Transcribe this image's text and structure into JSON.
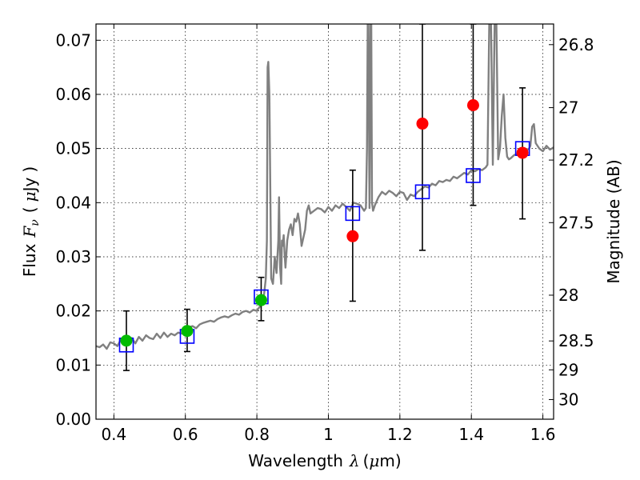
{
  "chart_data": {
    "type": "scatter",
    "xlabel": {
      "prefix": "Wavelength",
      "symbol": "λ",
      "unit_open": "(",
      "unit_mu": "μ",
      "unit_rest": "m)"
    },
    "ylabel": {
      "prefix": "Flux",
      "symbol": "F",
      "subscript": "ν",
      "unit_open": "(",
      "unit_mu": "μ",
      "unit_rest": "Jy",
      "unit_close": ")"
    },
    "y2label": "Magnitude (AB)",
    "xlim": [
      0.35,
      1.63
    ],
    "ylim": [
      0.0,
      0.073
    ],
    "grid": true,
    "x_ticks": [
      {
        "value": 0.4,
        "label": "0.4"
      },
      {
        "value": 0.6,
        "label": "0.6"
      },
      {
        "value": 0.8,
        "label": "0.8"
      },
      {
        "value": 1.0,
        "label": "1"
      },
      {
        "value": 1.2,
        "label": "1.2"
      },
      {
        "value": 1.4,
        "label": "1.4"
      },
      {
        "value": 1.6,
        "label": "1.6"
      }
    ],
    "y_ticks": [
      {
        "value": 0.0,
        "label": "0.00"
      },
      {
        "value": 0.01,
        "label": "0.01"
      },
      {
        "value": 0.02,
        "label": "0.02"
      },
      {
        "value": 0.03,
        "label": "0.03"
      },
      {
        "value": 0.04,
        "label": "0.04"
      },
      {
        "value": 0.05,
        "label": "0.05"
      },
      {
        "value": 0.06,
        "label": "0.06"
      },
      {
        "value": 0.07,
        "label": "0.07"
      }
    ],
    "mag_ticks": [
      {
        "value": 26.8,
        "label": "26.8"
      },
      {
        "value": 27.0,
        "label": "27"
      },
      {
        "value": 27.2,
        "label": "27.2"
      },
      {
        "value": 27.5,
        "label": "27.5"
      },
      {
        "value": 28.0,
        "label": "28"
      },
      {
        "value": 28.5,
        "label": "28.5"
      },
      {
        "value": 29.0,
        "label": "29"
      },
      {
        "value": 30.0,
        "label": "30"
      }
    ],
    "series": [
      {
        "kind": "line",
        "color": "#808080",
        "x": [
          0.35,
          0.36,
          0.37,
          0.38,
          0.39,
          0.4,
          0.41,
          0.42,
          0.43,
          0.44,
          0.45,
          0.46,
          0.47,
          0.48,
          0.49,
          0.5,
          0.51,
          0.52,
          0.53,
          0.54,
          0.55,
          0.56,
          0.57,
          0.58,
          0.59,
          0.6,
          0.61,
          0.62,
          0.63,
          0.64,
          0.65,
          0.66,
          0.67,
          0.68,
          0.69,
          0.7,
          0.71,
          0.72,
          0.73,
          0.74,
          0.75,
          0.76,
          0.77,
          0.78,
          0.79,
          0.8,
          0.81,
          0.815,
          0.82,
          0.825,
          0.828,
          0.83,
          0.832,
          0.835,
          0.84,
          0.845,
          0.85,
          0.855,
          0.86,
          0.862,
          0.865,
          0.868,
          0.87,
          0.872,
          0.875,
          0.878,
          0.88,
          0.885,
          0.89,
          0.895,
          0.9,
          0.905,
          0.91,
          0.915,
          0.92,
          0.925,
          0.93,
          0.935,
          0.94,
          0.945,
          0.95,
          0.96,
          0.97,
          0.98,
          0.99,
          1.0,
          1.01,
          1.02,
          1.03,
          1.04,
          1.05,
          1.06,
          1.07,
          1.08,
          1.09,
          1.1,
          1.105,
          1.108,
          1.11,
          1.112,
          1.115,
          1.118,
          1.12,
          1.122,
          1.125,
          1.13,
          1.14,
          1.15,
          1.16,
          1.17,
          1.18,
          1.19,
          1.2,
          1.21,
          1.22,
          1.23,
          1.24,
          1.25,
          1.26,
          1.27,
          1.28,
          1.29,
          1.3,
          1.31,
          1.32,
          1.33,
          1.34,
          1.35,
          1.36,
          1.37,
          1.38,
          1.39,
          1.4,
          1.41,
          1.42,
          1.43,
          1.44,
          1.445,
          1.45,
          1.455,
          1.46,
          1.465,
          1.47,
          1.475,
          1.48,
          1.485,
          1.49,
          1.495,
          1.5,
          1.505,
          1.51,
          1.52,
          1.53,
          1.54,
          1.55,
          1.56,
          1.565,
          1.57,
          1.575,
          1.58,
          1.59,
          1.6,
          1.61,
          1.62,
          1.63
        ],
        "y": [
          0.0135,
          0.0133,
          0.0138,
          0.013,
          0.0142,
          0.014,
          0.0135,
          0.0148,
          0.0138,
          0.0145,
          0.015,
          0.014,
          0.0152,
          0.0145,
          0.0155,
          0.015,
          0.0148,
          0.0158,
          0.015,
          0.016,
          0.0152,
          0.0158,
          0.0155,
          0.016,
          0.0158,
          0.0165,
          0.017,
          0.0172,
          0.0168,
          0.0175,
          0.0178,
          0.018,
          0.0182,
          0.018,
          0.0185,
          0.0188,
          0.019,
          0.0188,
          0.0192,
          0.0195,
          0.0193,
          0.0198,
          0.02,
          0.0197,
          0.0202,
          0.02,
          0.021,
          0.0225,
          0.023,
          0.026,
          0.033,
          0.065,
          0.066,
          0.06,
          0.026,
          0.025,
          0.03,
          0.027,
          0.033,
          0.041,
          0.028,
          0.025,
          0.033,
          0.032,
          0.034,
          0.03,
          0.028,
          0.033,
          0.035,
          0.036,
          0.034,
          0.037,
          0.0365,
          0.038,
          0.036,
          0.032,
          0.0335,
          0.035,
          0.0385,
          0.0395,
          0.038,
          0.0385,
          0.039,
          0.0388,
          0.0382,
          0.0392,
          0.0385,
          0.0395,
          0.039,
          0.0398,
          0.0392,
          0.0385,
          0.04,
          0.0398,
          0.0395,
          0.0385,
          0.039,
          0.05,
          0.073,
          0.073,
          0.039,
          0.073,
          0.073,
          0.04,
          0.0385,
          0.0395,
          0.041,
          0.042,
          0.0415,
          0.0422,
          0.0418,
          0.0412,
          0.042,
          0.0418,
          0.0405,
          0.0415,
          0.0412,
          0.042,
          0.0425,
          0.043,
          0.0428,
          0.0435,
          0.0432,
          0.044,
          0.0438,
          0.0442,
          0.044,
          0.0448,
          0.0445,
          0.045,
          0.0455,
          0.0452,
          0.046,
          0.0458,
          0.0462,
          0.046,
          0.0465,
          0.047,
          0.073,
          0.073,
          0.047,
          0.073,
          0.073,
          0.048,
          0.05,
          0.056,
          0.06,
          0.052,
          0.0485,
          0.048,
          0.0482,
          0.0488,
          0.049,
          0.0495,
          0.05,
          0.0498,
          0.0505,
          0.054,
          0.0545,
          0.051,
          0.05,
          0.0495,
          0.0505,
          0.0498,
          0.0502
        ]
      },
      {
        "kind": "square",
        "color": "#0000ff",
        "points": [
          {
            "x": 0.435,
            "y": 0.0137
          },
          {
            "x": 0.605,
            "y": 0.0153
          },
          {
            "x": 0.812,
            "y": 0.0226
          },
          {
            "x": 1.068,
            "y": 0.038
          },
          {
            "x": 1.263,
            "y": 0.042
          },
          {
            "x": 1.405,
            "y": 0.045
          },
          {
            "x": 1.543,
            "y": 0.05
          }
        ]
      },
      {
        "kind": "circle",
        "color": "#00bb00",
        "points": [
          {
            "x": 0.435,
            "y": 0.0145,
            "lo": 0.009,
            "hi": 0.02
          },
          {
            "x": 0.605,
            "y": 0.0163,
            "lo": 0.0125,
            "hi": 0.0203
          },
          {
            "x": 0.812,
            "y": 0.022,
            "lo": 0.0182,
            "hi": 0.0262
          }
        ]
      },
      {
        "kind": "circle",
        "color": "#ff0000",
        "points": [
          {
            "x": 1.068,
            "y": 0.0338,
            "lo": 0.0218,
            "hi": 0.046
          },
          {
            "x": 1.263,
            "y": 0.0546,
            "lo": 0.0312,
            "hi": 0.073
          },
          {
            "x": 1.405,
            "y": 0.058,
            "lo": 0.0395,
            "hi": 0.073
          },
          {
            "x": 1.543,
            "y": 0.0492,
            "lo": 0.037,
            "hi": 0.0612
          }
        ]
      }
    ]
  }
}
